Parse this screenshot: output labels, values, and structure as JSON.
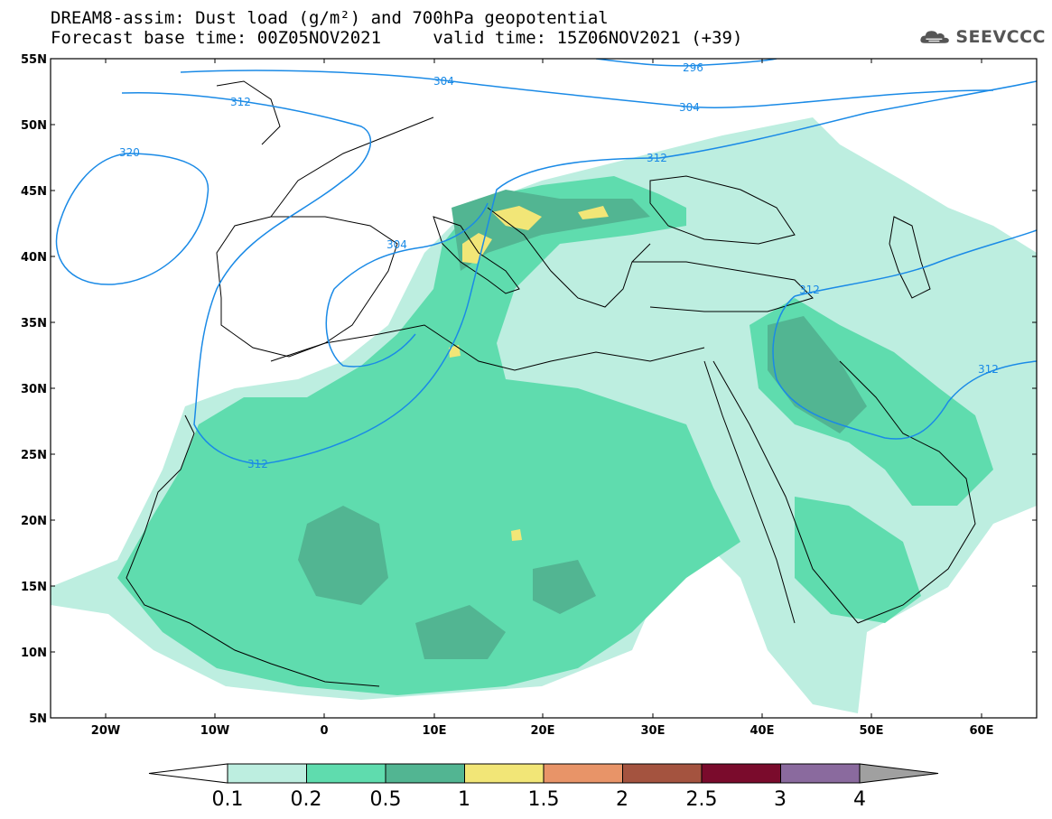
{
  "header": {
    "title_line1": "DREAM8-assim: Dust load (g/m²) and 700hPa geopotential",
    "title_line2": "Forecast base time: 00Z05NOV2021     valid time: 15Z06NOV2021 (+39)"
  },
  "logo": {
    "text": "SEEVCCC",
    "icon": "cloud-icon"
  },
  "map": {
    "lat_labels": [
      "55N",
      "50N",
      "45N",
      "40N",
      "35N",
      "30N",
      "25N",
      "20N",
      "15N",
      "10N",
      "5N"
    ],
    "lon_labels": [
      "20W",
      "10W",
      "0",
      "10E",
      "20E",
      "30E",
      "40E",
      "50E",
      "60E"
    ],
    "contour_labels": [
      "296",
      "304",
      "304",
      "312",
      "312",
      "320",
      "304",
      "312",
      "312",
      "312"
    ],
    "contour_color": "#1a8ae6",
    "land_outline_color": "#000000"
  },
  "colorbar": {
    "labels": [
      "0.1",
      "0.2",
      "0.5",
      "1",
      "1.5",
      "2",
      "2.5",
      "3",
      "4"
    ],
    "colors": [
      "#bdeee0",
      "#5fdcae",
      "#52b592",
      "#f2e677",
      "#e89468",
      "#a4533f",
      "#7a0b2c",
      "#8a6a9e"
    ],
    "under_color": "#ffffff",
    "over_color": "#a0a0a0"
  }
}
